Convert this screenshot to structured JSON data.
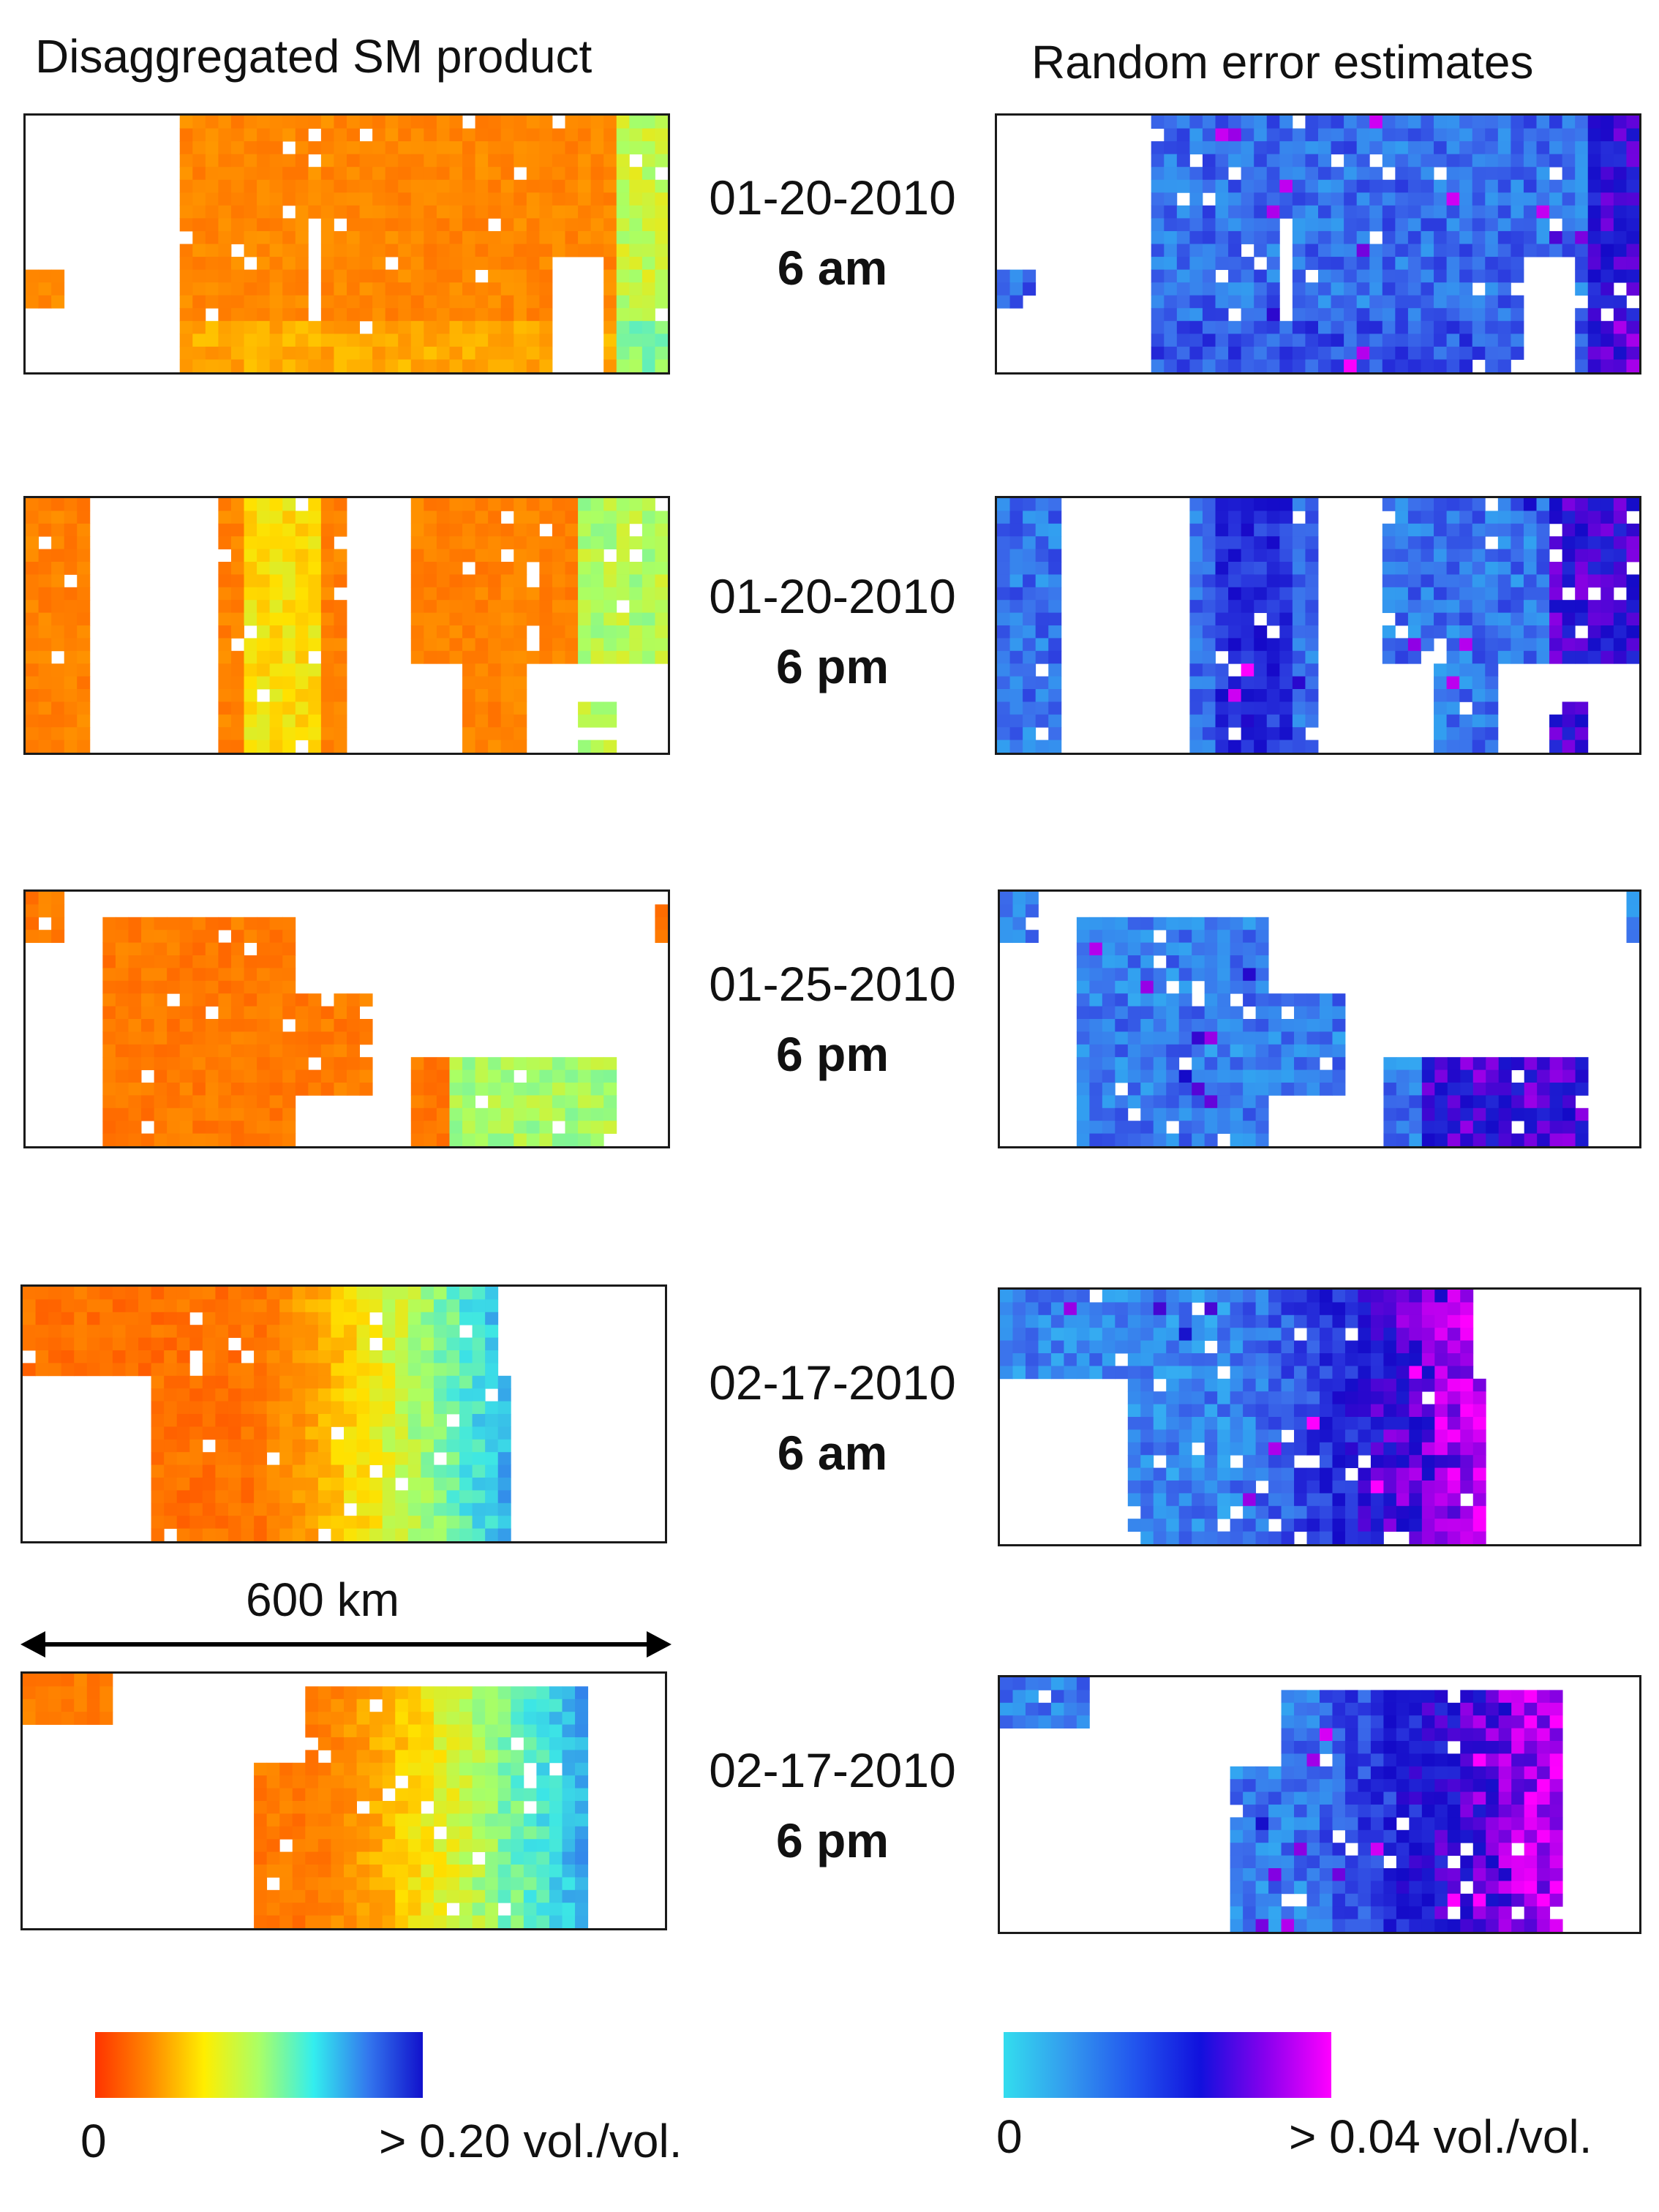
{
  "columns": {
    "left_title": "Disaggregated SM product",
    "right_title": "Random error estimates"
  },
  "panels": [
    {
      "date": "01-20-2010",
      "time": "6 am"
    },
    {
      "date": "01-20-2010",
      "time": "6 pm"
    },
    {
      "date": "01-25-2010",
      "time": "6 pm"
    },
    {
      "date": "02-17-2010",
      "time": "6 am"
    },
    {
      "date": "02-17-2010",
      "time": "6 pm"
    }
  ],
  "scale_bar": {
    "label": "600 km"
  },
  "colorbars": {
    "sm": {
      "min_label": "0",
      "max_label": "> 0.20 vol./vol.",
      "colors": [
        "#ff3300",
        "#ff8800",
        "#ffee00",
        "#aaff66",
        "#33eeee",
        "#3377ee",
        "#1111cc"
      ]
    },
    "error": {
      "min_label": "0",
      "max_label": "> 0.04 vol./vol.",
      "colors": [
        "#33ddee",
        "#3399ee",
        "#2255ee",
        "#1111dd",
        "#8800ee",
        "#ff00ff"
      ]
    }
  }
}
